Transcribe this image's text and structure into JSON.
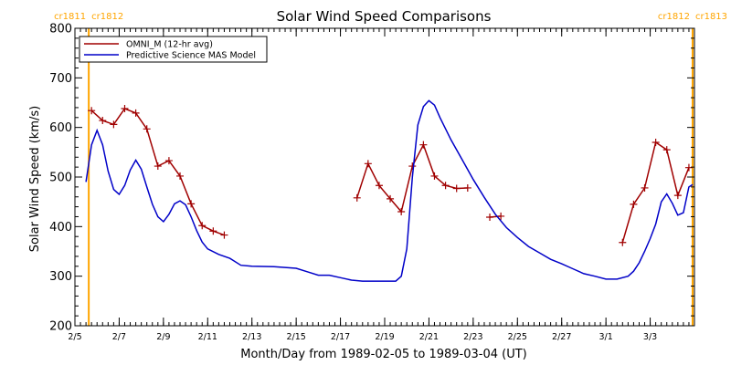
{
  "chart_data": {
    "type": "line",
    "title": "Solar Wind Speed Comparisons",
    "xlabel": "Month/Day from 1989-02-05 to 1989-03-04 (UT)",
    "ylabel": "Solar Wind Speed (km/s)",
    "ylim": [
      200,
      800
    ],
    "xlim": [
      "1989-02-05",
      "1989-03-04"
    ],
    "y_ticks": [
      "200",
      "300",
      "400",
      "500",
      "600",
      "700",
      "800"
    ],
    "x_ticks": [
      {
        "date": "1989-02-05",
        "label": "2/5"
      },
      {
        "date": "1989-02-07",
        "label": "2/7"
      },
      {
        "date": "1989-02-09",
        "label": "2/9"
      },
      {
        "date": "1989-02-11",
        "label": "2/11"
      },
      {
        "date": "1989-02-13",
        "label": "2/13"
      },
      {
        "date": "1989-02-15",
        "label": "2/15"
      },
      {
        "date": "1989-02-17",
        "label": "2/17"
      },
      {
        "date": "1989-02-19",
        "label": "2/19"
      },
      {
        "date": "1989-02-21",
        "label": "2/21"
      },
      {
        "date": "1989-02-23",
        "label": "2/23"
      },
      {
        "date": "1989-02-25",
        "label": "2/25"
      },
      {
        "date": "1989-02-27",
        "label": "2/27"
      },
      {
        "date": "1989-03-01",
        "label": "3/1"
      },
      {
        "date": "1989-03-03",
        "label": "3/3"
      }
    ],
    "carrington_markers": [
      {
        "date": "1989-02-05 15:00",
        "left_label": "cr1811",
        "right_label": "cr1812",
        "color": "#FFA500",
        "position": "left"
      },
      {
        "date": "1989-03-04 22:00",
        "left_label": "cr1812",
        "right_label": "cr1813",
        "color": "#FFA500",
        "position": "right"
      }
    ],
    "legend": {
      "placement": "top-left"
    },
    "grid": false,
    "series": [
      {
        "name": "OMNI_M (12-hr avg)",
        "color": "#A00000",
        "marker": "+",
        "points": [
          [
            "1989-02-05 18:00",
            634
          ],
          [
            "1989-02-06 06:00",
            614
          ],
          [
            "1989-02-06 18:00",
            606
          ],
          [
            "1989-02-07 06:00",
            638
          ],
          [
            "1989-02-07 18:00",
            629
          ],
          [
            "1989-02-08 06:00",
            597
          ],
          [
            "1989-02-08 18:00",
            522
          ],
          [
            "1989-02-09 06:00",
            533
          ],
          [
            "1989-02-09 18:00",
            502
          ],
          [
            "1989-02-10 06:00",
            446
          ],
          [
            "1989-02-10 18:00",
            402
          ],
          [
            "1989-02-11 06:00",
            391
          ],
          [
            "1989-02-11 18:00",
            383
          ],
          null,
          [
            "1989-02-17 18:00",
            458
          ],
          [
            "1989-02-18 06:00",
            527
          ],
          [
            "1989-02-18 18:00",
            483
          ],
          [
            "1989-02-19 06:00",
            456
          ],
          [
            "1989-02-19 18:00",
            430
          ],
          [
            "1989-02-20 06:00",
            522
          ],
          [
            "1989-02-20 18:00",
            565
          ],
          [
            "1989-02-21 06:00",
            502
          ],
          [
            "1989-02-21 18:00",
            483
          ],
          [
            "1989-02-22 06:00",
            477
          ],
          [
            "1989-02-22 18:00",
            478
          ],
          null,
          [
            "1989-02-23 18:00",
            419
          ],
          [
            "1989-02-24 06:00",
            421
          ],
          null,
          [
            "1989-03-01 18:00",
            368
          ],
          [
            "1989-03-02 06:00",
            445
          ],
          [
            "1989-03-02 18:00",
            478
          ],
          [
            "1989-03-03 06:00",
            570
          ],
          [
            "1989-03-03 18:00",
            555
          ],
          [
            "1989-03-04 06:00",
            463
          ],
          [
            "1989-03-04 18:00",
            519
          ]
        ]
      },
      {
        "name": "Predictive Science MAS Model",
        "color": "#0000C8",
        "marker": "none",
        "points": [
          [
            "1989-02-05 12:00",
            490
          ],
          [
            "1989-02-05 18:00",
            565
          ],
          [
            "1989-02-06 00:00",
            594
          ],
          [
            "1989-02-06 06:00",
            565
          ],
          [
            "1989-02-06 12:00",
            512
          ],
          [
            "1989-02-06 18:00",
            475
          ],
          [
            "1989-02-07 00:00",
            465
          ],
          [
            "1989-02-07 06:00",
            483
          ],
          [
            "1989-02-07 12:00",
            514
          ],
          [
            "1989-02-07 18:00",
            534
          ],
          [
            "1989-02-08 00:00",
            516
          ],
          [
            "1989-02-08 06:00",
            480
          ],
          [
            "1989-02-08 12:00",
            445
          ],
          [
            "1989-02-08 18:00",
            420
          ],
          [
            "1989-02-09 00:00",
            410
          ],
          [
            "1989-02-09 06:00",
            425
          ],
          [
            "1989-02-09 12:00",
            446
          ],
          [
            "1989-02-09 18:00",
            452
          ],
          [
            "1989-02-10 00:00",
            444
          ],
          [
            "1989-02-10 06:00",
            420
          ],
          [
            "1989-02-10 12:00",
            392
          ],
          [
            "1989-02-10 18:00",
            369
          ],
          [
            "1989-02-11 00:00",
            355
          ],
          [
            "1989-02-11 12:00",
            344
          ],
          [
            "1989-02-12 00:00",
            336
          ],
          [
            "1989-02-12 12:00",
            322
          ],
          [
            "1989-02-13 00:00",
            320
          ],
          [
            "1989-02-14 00:00",
            319
          ],
          [
            "1989-02-15 00:00",
            316
          ],
          [
            "1989-02-15 12:00",
            309
          ],
          [
            "1989-02-16 00:00",
            302
          ],
          [
            "1989-02-16 12:00",
            302
          ],
          [
            "1989-02-17 00:00",
            297
          ],
          [
            "1989-02-17 12:00",
            292
          ],
          [
            "1989-02-18 00:00",
            290
          ],
          [
            "1989-02-19 00:00",
            290
          ],
          [
            "1989-02-19 12:00",
            290
          ],
          [
            "1989-02-19 18:00",
            300
          ],
          [
            "1989-02-20 00:00",
            355
          ],
          [
            "1989-02-20 06:00",
            500
          ],
          [
            "1989-02-20 12:00",
            605
          ],
          [
            "1989-02-20 18:00",
            642
          ],
          [
            "1989-02-21 00:00",
            654
          ],
          [
            "1989-02-21 06:00",
            645
          ],
          [
            "1989-02-21 12:00",
            620
          ],
          [
            "1989-02-22 00:00",
            575
          ],
          [
            "1989-02-22 12:00",
            535
          ],
          [
            "1989-02-23 00:00",
            495
          ],
          [
            "1989-02-23 12:00",
            459
          ],
          [
            "1989-02-24 00:00",
            425
          ],
          [
            "1989-02-24 12:00",
            398
          ],
          [
            "1989-02-25 00:00",
            378
          ],
          [
            "1989-02-25 12:00",
            360
          ],
          [
            "1989-02-26 00:00",
            347
          ],
          [
            "1989-02-26 12:00",
            334
          ],
          [
            "1989-02-27 00:00",
            325
          ],
          [
            "1989-02-27 12:00",
            315
          ],
          [
            "1989-02-28 00:00",
            305
          ],
          [
            "1989-02-28 12:00",
            300
          ],
          [
            "1989-03-01 00:00",
            294
          ],
          [
            "1989-03-01 12:00",
            294
          ],
          [
            "1989-03-02 00:00",
            300
          ],
          [
            "1989-03-02 06:00",
            310
          ],
          [
            "1989-03-02 12:00",
            327
          ],
          [
            "1989-03-02 18:00",
            350
          ],
          [
            "1989-03-03 00:00",
            376
          ],
          [
            "1989-03-03 06:00",
            405
          ],
          [
            "1989-03-03 12:00",
            450
          ],
          [
            "1989-03-03 18:00",
            466
          ],
          [
            "1989-03-04 00:00",
            447
          ],
          [
            "1989-03-04 06:00",
            423
          ],
          [
            "1989-03-04 12:00",
            428
          ],
          [
            "1989-03-04 18:00",
            480
          ],
          [
            "1989-03-04 22:00",
            485
          ]
        ]
      }
    ]
  }
}
